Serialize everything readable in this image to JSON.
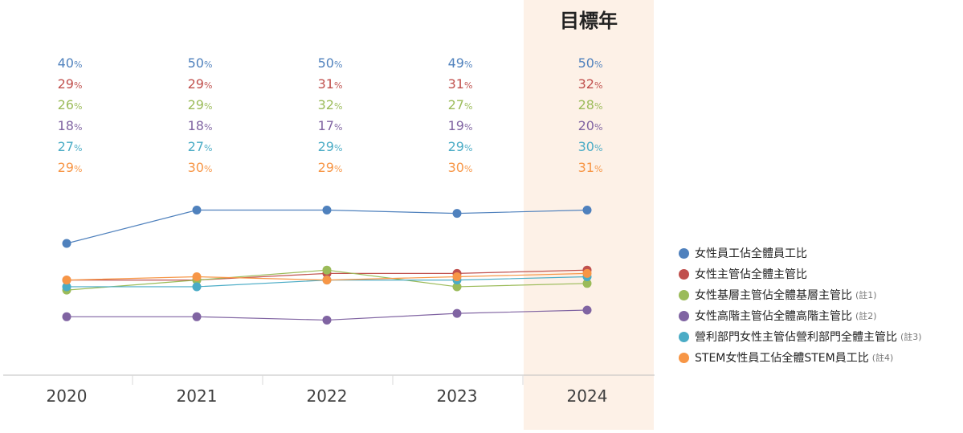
{
  "chart_data": {
    "type": "line",
    "title": "",
    "xlabel": "",
    "ylabel": "",
    "target_label": "目標年",
    "target_category": "2024",
    "percent_unit": "%",
    "categories": [
      "2020",
      "2021",
      "2022",
      "2023",
      "2024"
    ],
    "ylim": [
      0,
      60
    ],
    "grid": false,
    "legend_position": "right",
    "series": [
      {
        "name": "女性員工佔全體員工比",
        "note": "",
        "color": "#4f81bd",
        "values": [
          40,
          50,
          50,
          49,
          50
        ]
      },
      {
        "name": "女性主管佔全體主管比",
        "note": "",
        "color": "#c0504d",
        "values": [
          29,
          29,
          31,
          31,
          32
        ]
      },
      {
        "name": "女性基層主管佔全體基層主管比",
        "note": "(註1)",
        "color": "#9bbb59",
        "values": [
          26,
          29,
          32,
          27,
          28
        ]
      },
      {
        "name": "女性高階主管佔全體高階主管比",
        "note": "(註2)",
        "color": "#8064a2",
        "values": [
          18,
          18,
          17,
          19,
          20
        ]
      },
      {
        "name": "營利部門女性主管佔營利部門全體主管比",
        "note": "(註3)",
        "color": "#4bacc6",
        "values": [
          27,
          27,
          29,
          29,
          30
        ]
      },
      {
        "name": "STEM女性員工佔全體STEM員工比",
        "note": "(註4)",
        "color": "#f79646",
        "values": [
          29,
          30,
          29,
          30,
          31
        ]
      }
    ]
  }
}
